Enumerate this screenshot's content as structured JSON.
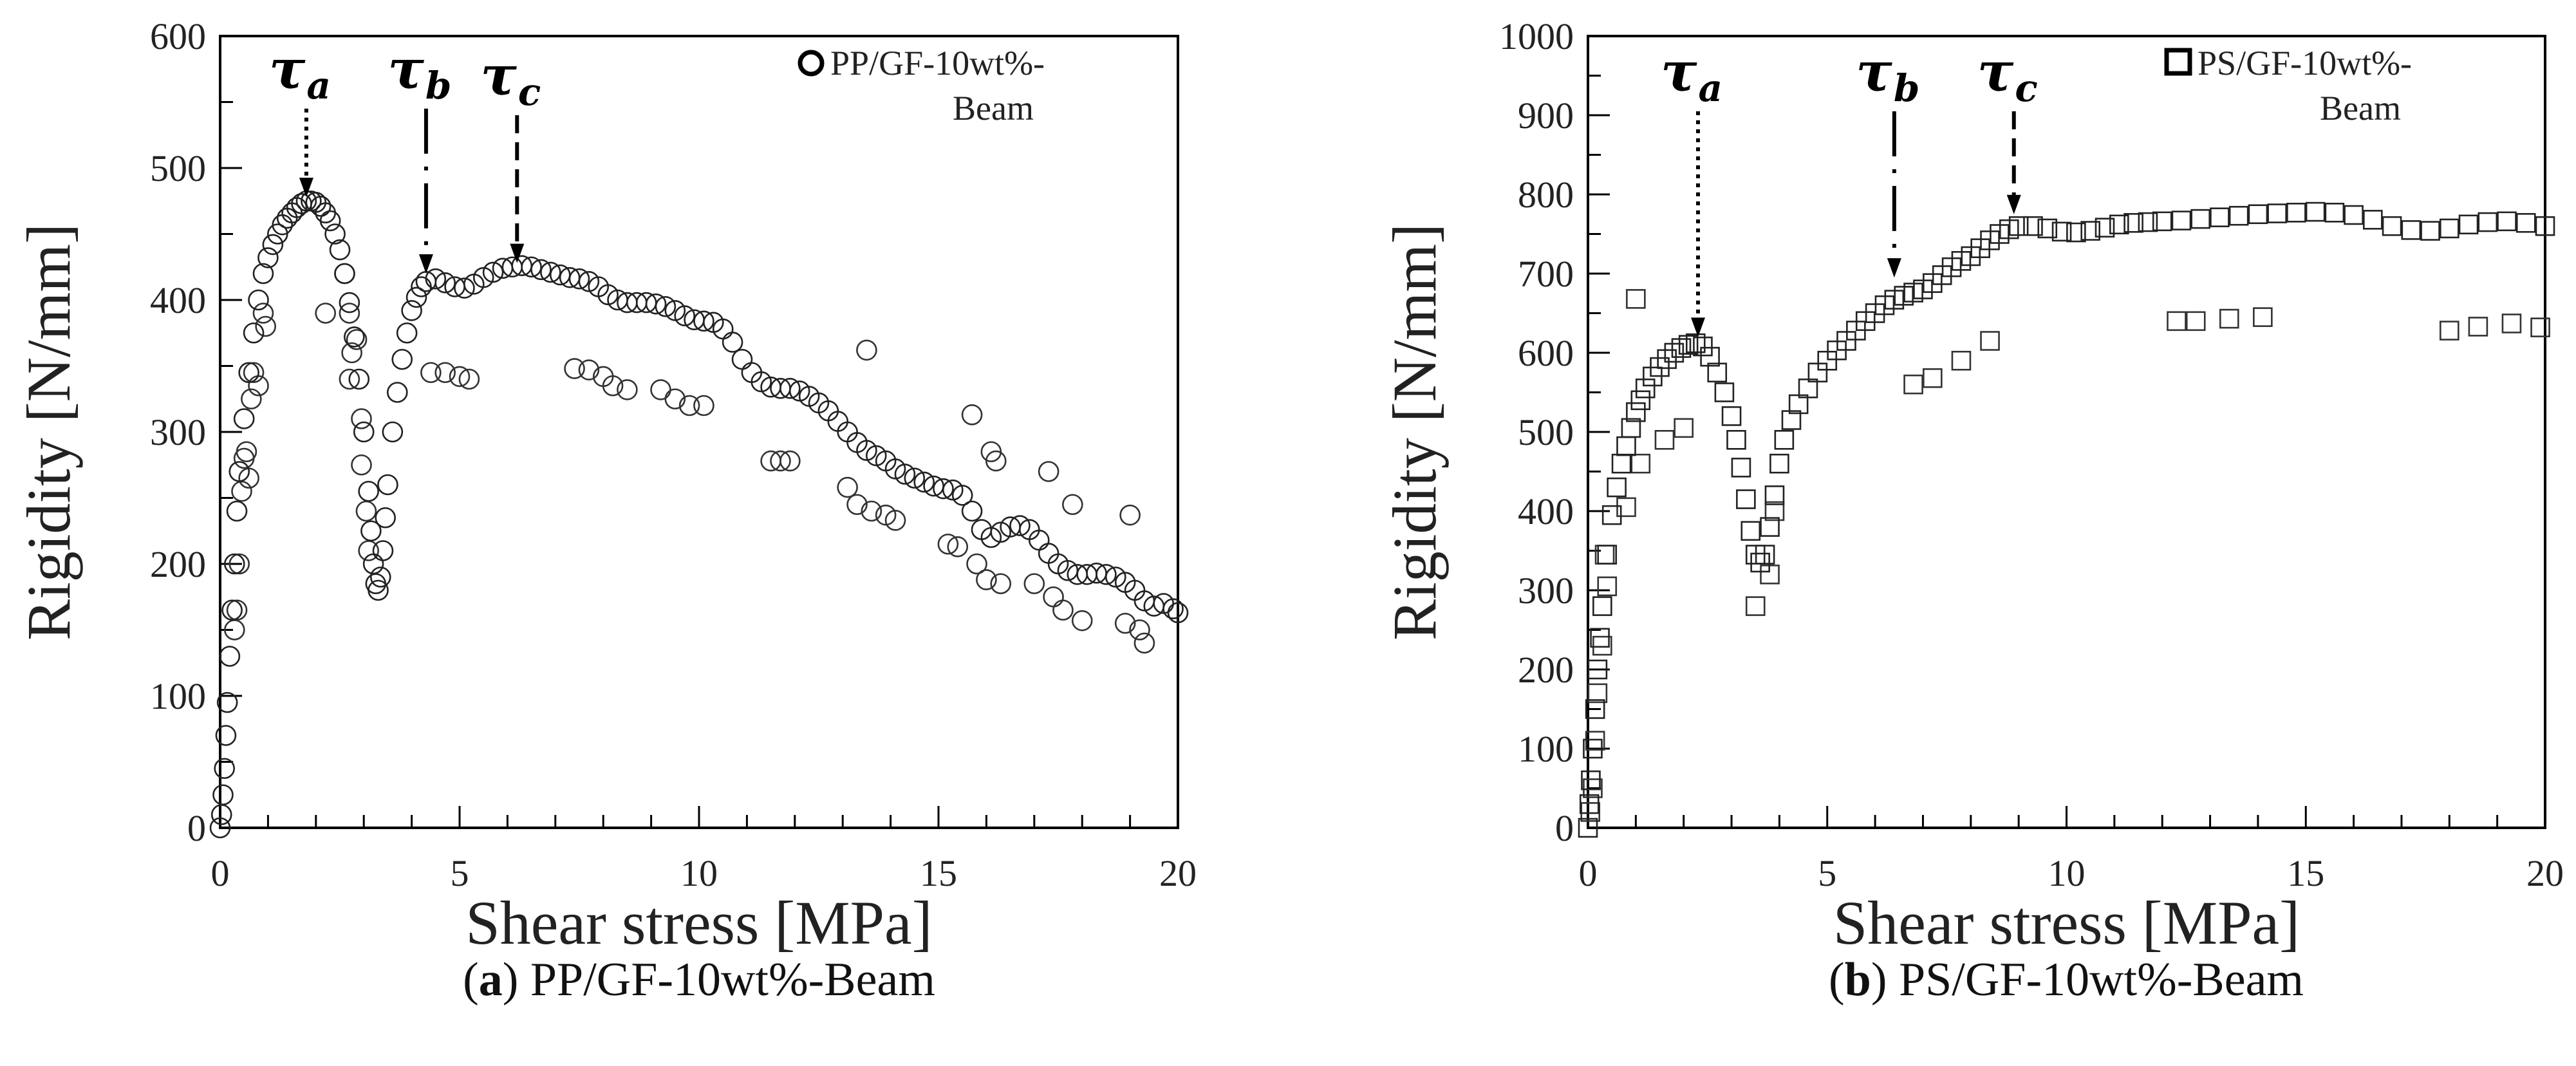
{
  "chart_data": [
    {
      "type": "scatter",
      "id": "a",
      "caption_letter": "a",
      "caption_text": "PP/GF-10wt%-Beam",
      "xlabel": "Shear stress [MPa]",
      "ylabel": "Rigidity [N/mm]",
      "xlim": [
        0,
        20
      ],
      "ylim": [
        0,
        600
      ],
      "x_ticks": [
        "0",
        "5",
        "10",
        "15",
        "20"
      ],
      "y_ticks": [
        "0",
        "100",
        "200",
        "300",
        "400",
        "500",
        "600"
      ],
      "y_major_step": 100,
      "marker": "circle",
      "legend": {
        "line1": "PP/GF-10wt%-",
        "line2": "Beam",
        "position": "top-right"
      },
      "annotations": [
        {
          "label": "τ",
          "sub": "a",
          "x": 1.8,
          "y_from": 545,
          "y_to": 478,
          "style": "dotted"
        },
        {
          "label": "τ",
          "sub": "b",
          "x": 4.3,
          "y_from": 545,
          "y_to": 420,
          "style": "dashdot"
        },
        {
          "label": "τ",
          "sub": "c",
          "x": 6.2,
          "y_from": 540,
          "y_to": 428,
          "style": "dashed"
        }
      ],
      "curve": [
        [
          0,
          0
        ],
        [
          0.03,
          10
        ],
        [
          0.06,
          25
        ],
        [
          0.09,
          45
        ],
        [
          0.12,
          70
        ],
        [
          0.15,
          95
        ],
        [
          0.2,
          130
        ],
        [
          0.25,
          165
        ],
        [
          0.3,
          200
        ],
        [
          0.35,
          240
        ],
        [
          0.4,
          270
        ],
        [
          0.5,
          310
        ],
        [
          0.6,
          345
        ],
        [
          0.7,
          375
        ],
        [
          0.8,
          400
        ],
        [
          0.9,
          420
        ],
        [
          1.0,
          432
        ],
        [
          1.1,
          442
        ],
        [
          1.2,
          450
        ],
        [
          1.3,
          457
        ],
        [
          1.4,
          462
        ],
        [
          1.5,
          466
        ],
        [
          1.6,
          470
        ],
        [
          1.7,
          473
        ],
        [
          1.8,
          475
        ],
        [
          1.9,
          475
        ],
        [
          2.0,
          474
        ],
        [
          2.1,
          471
        ],
        [
          2.2,
          466
        ],
        [
          2.3,
          460
        ],
        [
          2.4,
          450
        ],
        [
          2.5,
          438
        ],
        [
          2.6,
          420
        ],
        [
          2.7,
          398
        ],
        [
          2.8,
          372
        ],
        [
          2.9,
          340
        ],
        [
          3.0,
          300
        ],
        [
          3.1,
          255
        ],
        [
          3.15,
          225
        ],
        [
          3.2,
          200
        ],
        [
          3.25,
          185
        ],
        [
          3.3,
          180
        ],
        [
          3.35,
          190
        ],
        [
          3.4,
          210
        ],
        [
          3.45,
          235
        ],
        [
          3.5,
          260
        ],
        [
          3.6,
          300
        ],
        [
          3.7,
          330
        ],
        [
          3.8,
          355
        ],
        [
          3.9,
          375
        ],
        [
          4.0,
          392
        ],
        [
          4.1,
          402
        ],
        [
          4.2,
          410
        ],
        [
          4.3,
          414
        ],
        [
          4.5,
          416
        ],
        [
          4.7,
          413
        ],
        [
          4.9,
          410
        ],
        [
          5.1,
          409
        ],
        [
          5.3,
          412
        ],
        [
          5.5,
          417
        ],
        [
          5.7,
          421
        ],
        [
          5.9,
          424
        ],
        [
          6.1,
          425
        ],
        [
          6.3,
          426
        ],
        [
          6.5,
          425
        ],
        [
          6.7,
          423
        ],
        [
          6.9,
          421
        ],
        [
          7.1,
          419
        ],
        [
          7.3,
          417
        ],
        [
          7.5,
          416
        ],
        [
          7.7,
          414
        ],
        [
          7.9,
          410
        ],
        [
          8.1,
          404
        ],
        [
          8.3,
          400
        ],
        [
          8.5,
          398
        ],
        [
          8.7,
          398
        ],
        [
          8.9,
          398
        ],
        [
          9.1,
          397
        ],
        [
          9.3,
          395
        ],
        [
          9.5,
          392
        ],
        [
          9.7,
          388
        ],
        [
          9.9,
          385
        ],
        [
          10.1,
          384
        ],
        [
          10.3,
          383
        ],
        [
          10.5,
          378
        ],
        [
          10.7,
          368
        ],
        [
          10.9,
          355
        ],
        [
          11.1,
          345
        ],
        [
          11.3,
          338
        ],
        [
          11.5,
          334
        ],
        [
          11.7,
          333
        ],
        [
          11.9,
          333
        ],
        [
          12.1,
          331
        ],
        [
          12.3,
          327
        ],
        [
          12.5,
          322
        ],
        [
          12.7,
          316
        ],
        [
          12.9,
          308
        ],
        [
          13.1,
          300
        ],
        [
          13.3,
          292
        ],
        [
          13.5,
          286
        ],
        [
          13.7,
          282
        ],
        [
          13.9,
          278
        ],
        [
          14.1,
          272
        ],
        [
          14.3,
          268
        ],
        [
          14.5,
          265
        ],
        [
          14.7,
          262
        ],
        [
          14.9,
          259
        ],
        [
          15.1,
          257
        ],
        [
          15.3,
          256
        ],
        [
          15.5,
          252
        ],
        [
          15.7,
          240
        ],
        [
          15.9,
          226
        ],
        [
          16.1,
          220
        ],
        [
          16.3,
          224
        ],
        [
          16.5,
          228
        ],
        [
          16.7,
          229
        ],
        [
          16.9,
          226
        ],
        [
          17.1,
          218
        ],
        [
          17.3,
          208
        ],
        [
          17.5,
          200
        ],
        [
          17.7,
          195
        ],
        [
          17.9,
          192
        ],
        [
          18.1,
          192
        ],
        [
          18.3,
          193
        ],
        [
          18.5,
          192
        ],
        [
          18.7,
          190
        ],
        [
          18.9,
          186
        ],
        [
          19.1,
          180
        ],
        [
          19.3,
          172
        ],
        [
          19.5,
          168
        ],
        [
          19.7,
          170
        ],
        [
          19.9,
          166
        ],
        [
          20.0,
          163
        ]
      ],
      "outliers": [
        [
          0.3,
          150
        ],
        [
          0.35,
          165
        ],
        [
          0.4,
          200
        ],
        [
          0.45,
          255
        ],
        [
          0.5,
          280
        ],
        [
          0.55,
          285
        ],
        [
          0.6,
          265
        ],
        [
          0.65,
          325
        ],
        [
          0.7,
          345
        ],
        [
          0.8,
          335
        ],
        [
          0.9,
          390
        ],
        [
          0.95,
          380
        ],
        [
          2.2,
          390
        ],
        [
          2.6,
          420
        ],
        [
          2.7,
          390
        ],
        [
          2.75,
          360
        ],
        [
          2.85,
          370
        ],
        [
          2.7,
          340
        ],
        [
          2.95,
          310
        ],
        [
          2.95,
          275
        ],
        [
          3.05,
          240
        ],
        [
          3.1,
          210
        ],
        [
          4.4,
          345
        ],
        [
          4.7,
          345
        ],
        [
          5.0,
          342
        ],
        [
          5.2,
          340
        ],
        [
          7.4,
          348
        ],
        [
          7.7,
          347
        ],
        [
          8.0,
          342
        ],
        [
          8.2,
          335
        ],
        [
          8.5,
          332
        ],
        [
          9.2,
          332
        ],
        [
          9.5,
          325
        ],
        [
          9.8,
          320
        ],
        [
          10.1,
          320
        ],
        [
          11.5,
          278
        ],
        [
          11.7,
          278
        ],
        [
          11.9,
          278
        ],
        [
          13.1,
          258
        ],
        [
          13.3,
          245
        ],
        [
          13.5,
          362
        ],
        [
          13.6,
          240
        ],
        [
          13.9,
          237
        ],
        [
          14.1,
          233
        ],
        [
          15.2,
          215
        ],
        [
          15.4,
          213
        ],
        [
          15.7,
          313
        ],
        [
          15.8,
          200
        ],
        [
          16.0,
          188
        ],
        [
          16.1,
          285
        ],
        [
          16.2,
          278
        ],
        [
          16.3,
          185
        ],
        [
          17.0,
          185
        ],
        [
          17.3,
          270
        ],
        [
          17.4,
          175
        ],
        [
          17.6,
          165
        ],
        [
          17.8,
          245
        ],
        [
          18.0,
          157
        ],
        [
          18.9,
          155
        ],
        [
          19.0,
          237
        ],
        [
          19.2,
          150
        ],
        [
          19.3,
          140
        ]
      ]
    },
    {
      "type": "scatter",
      "id": "b",
      "caption_letter": "b",
      "caption_text": "PS/GF-10wt%-Beam",
      "xlabel": "Shear stress [MPa]",
      "ylabel": "Rigidity [N/mm]",
      "xlim": [
        0,
        20
      ],
      "ylim": [
        0,
        1000
      ],
      "x_ticks": [
        "0",
        "5",
        "10",
        "15",
        "20"
      ],
      "y_ticks": [
        "0",
        "100",
        "200",
        "300",
        "400",
        "500",
        "600",
        "700",
        "800",
        "900",
        "1000"
      ],
      "y_major_step": 100,
      "marker": "square",
      "legend": {
        "line1": "PS/GF-10wt%-",
        "line2": "Beam",
        "position": "top-right"
      },
      "annotations": [
        {
          "label": "τ",
          "sub": "a",
          "x": 2.3,
          "y_from": 905,
          "y_to": 620,
          "style": "dotted"
        },
        {
          "label": "τ",
          "sub": "b",
          "x": 6.4,
          "y_from": 905,
          "y_to": 695,
          "style": "dashdot"
        },
        {
          "label": "τ",
          "sub": "c",
          "x": 8.9,
          "y_from": 905,
          "y_to": 775,
          "style": "dashed"
        }
      ],
      "curve": [
        [
          0,
          0
        ],
        [
          0.03,
          30
        ],
        [
          0.06,
          60
        ],
        [
          0.1,
          100
        ],
        [
          0.15,
          150
        ],
        [
          0.2,
          200
        ],
        [
          0.25,
          240
        ],
        [
          0.3,
          280
        ],
        [
          0.4,
          345
        ],
        [
          0.5,
          395
        ],
        [
          0.6,
          430
        ],
        [
          0.7,
          460
        ],
        [
          0.8,
          482
        ],
        [
          0.9,
          505
        ],
        [
          1.0,
          525
        ],
        [
          1.1,
          540
        ],
        [
          1.2,
          555
        ],
        [
          1.35,
          570
        ],
        [
          1.5,
          582
        ],
        [
          1.65,
          592
        ],
        [
          1.8,
          600
        ],
        [
          1.95,
          606
        ],
        [
          2.1,
          610
        ],
        [
          2.25,
          612
        ],
        [
          2.4,
          608
        ],
        [
          2.55,
          595
        ],
        [
          2.7,
          575
        ],
        [
          2.85,
          550
        ],
        [
          3.0,
          520
        ],
        [
          3.1,
          490
        ],
        [
          3.2,
          455
        ],
        [
          3.3,
          415
        ],
        [
          3.4,
          375
        ],
        [
          3.5,
          345
        ],
        [
          3.6,
          335
        ],
        [
          3.7,
          345
        ],
        [
          3.8,
          380
        ],
        [
          3.9,
          420
        ],
        [
          4.0,
          460
        ],
        [
          4.1,
          490
        ],
        [
          4.25,
          515
        ],
        [
          4.4,
          535
        ],
        [
          4.6,
          555
        ],
        [
          4.8,
          575
        ],
        [
          5.0,
          590
        ],
        [
          5.2,
          603
        ],
        [
          5.4,
          615
        ],
        [
          5.6,
          628
        ],
        [
          5.8,
          640
        ],
        [
          6.0,
          650
        ],
        [
          6.2,
          660
        ],
        [
          6.4,
          667
        ],
        [
          6.6,
          672
        ],
        [
          6.8,
          676
        ],
        [
          7.0,
          680
        ],
        [
          7.2,
          688
        ],
        [
          7.4,
          698
        ],
        [
          7.6,
          708
        ],
        [
          7.8,
          716
        ],
        [
          8.0,
          722
        ],
        [
          8.2,
          732
        ],
        [
          8.4,
          742
        ],
        [
          8.6,
          750
        ],
        [
          8.8,
          756
        ],
        [
          9.0,
          760
        ],
        [
          9.3,
          760
        ],
        [
          9.6,
          757
        ],
        [
          9.9,
          753
        ],
        [
          10.2,
          752
        ],
        [
          10.5,
          754
        ],
        [
          10.8,
          758
        ],
        [
          11.1,
          762
        ],
        [
          11.4,
          764
        ],
        [
          11.7,
          765
        ],
        [
          12.0,
          766
        ],
        [
          12.4,
          767
        ],
        [
          12.8,
          769
        ],
        [
          13.2,
          771
        ],
        [
          13.6,
          773
        ],
        [
          14.0,
          775
        ],
        [
          14.4,
          776
        ],
        [
          14.8,
          777
        ],
        [
          15.2,
          778
        ],
        [
          15.6,
          777
        ],
        [
          16.0,
          774
        ],
        [
          16.4,
          768
        ],
        [
          16.8,
          760
        ],
        [
          17.2,
          755
        ],
        [
          17.6,
          754
        ],
        [
          18.0,
          757
        ],
        [
          18.4,
          762
        ],
        [
          18.8,
          765
        ],
        [
          19.2,
          766
        ],
        [
          19.6,
          764
        ],
        [
          20.0,
          760
        ]
      ],
      "outliers": [
        [
          0.05,
          20
        ],
        [
          0.1,
          50
        ],
        [
          0.15,
          110
        ],
        [
          0.2,
          170
        ],
        [
          0.3,
          230
        ],
        [
          0.4,
          305
        ],
        [
          0.35,
          345
        ],
        [
          0.8,
          405
        ],
        [
          1.0,
          668
        ],
        [
          1.1,
          460
        ],
        [
          1.6,
          490
        ],
        [
          2.0,
          505
        ],
        [
          3.5,
          280
        ],
        [
          3.8,
          320
        ],
        [
          3.9,
          400
        ],
        [
          6.8,
          560
        ],
        [
          7.2,
          568
        ],
        [
          7.8,
          590
        ],
        [
          8.4,
          615
        ],
        [
          12.3,
          640
        ],
        [
          12.7,
          640
        ],
        [
          13.4,
          643
        ],
        [
          14.1,
          645
        ],
        [
          18.0,
          628
        ],
        [
          18.6,
          633
        ],
        [
          19.3,
          637
        ],
        [
          19.9,
          632
        ]
      ]
    }
  ]
}
